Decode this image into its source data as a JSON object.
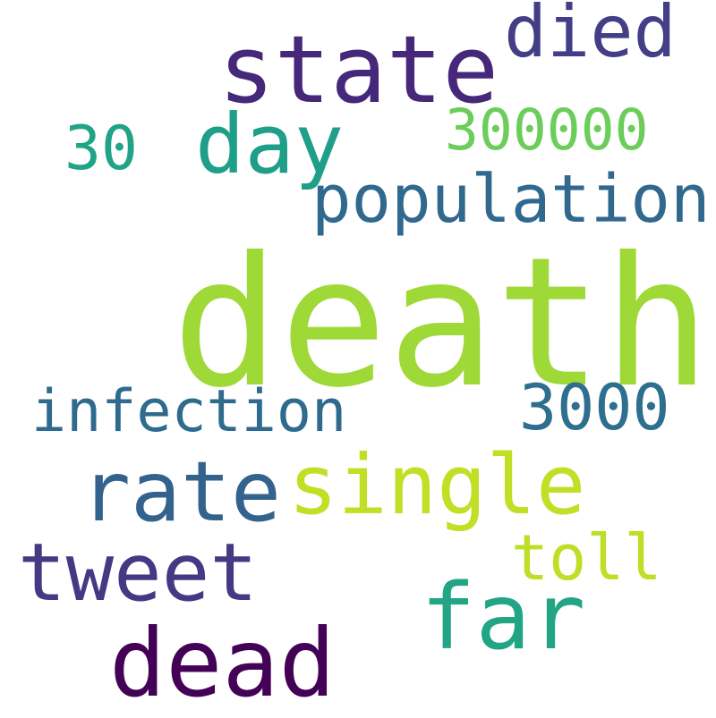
{
  "words": [
    {
      "key": "death",
      "text": "death",
      "color": "#9fd938"
    },
    {
      "key": "state",
      "text": "state",
      "color": "#46287a"
    },
    {
      "key": "died",
      "text": "died",
      "color": "#433e85"
    },
    {
      "key": "day",
      "text": "day",
      "color": "#1f9e89"
    },
    {
      "key": "300000",
      "text": "300000",
      "color": "#6ccd5a"
    },
    {
      "key": "30",
      "text": "30",
      "color": "#20a386"
    },
    {
      "key": "population",
      "text": "population",
      "color": "#31688e"
    },
    {
      "key": "infection",
      "text": "infection",
      "color": "#2f6b8e"
    },
    {
      "key": "3000",
      "text": "3000",
      "color": "#2e6e8e"
    },
    {
      "key": "rate",
      "text": "rate",
      "color": "#33638d"
    },
    {
      "key": "single",
      "text": "single",
      "color": "#c0df25"
    },
    {
      "key": "toll",
      "text": "toll",
      "color": "#bddf26"
    },
    {
      "key": "tweet",
      "text": "tweet",
      "color": "#443a83"
    },
    {
      "key": "far",
      "text": "far",
      "color": "#21a585"
    },
    {
      "key": "dead",
      "text": "dead",
      "color": "#440256"
    }
  ]
}
